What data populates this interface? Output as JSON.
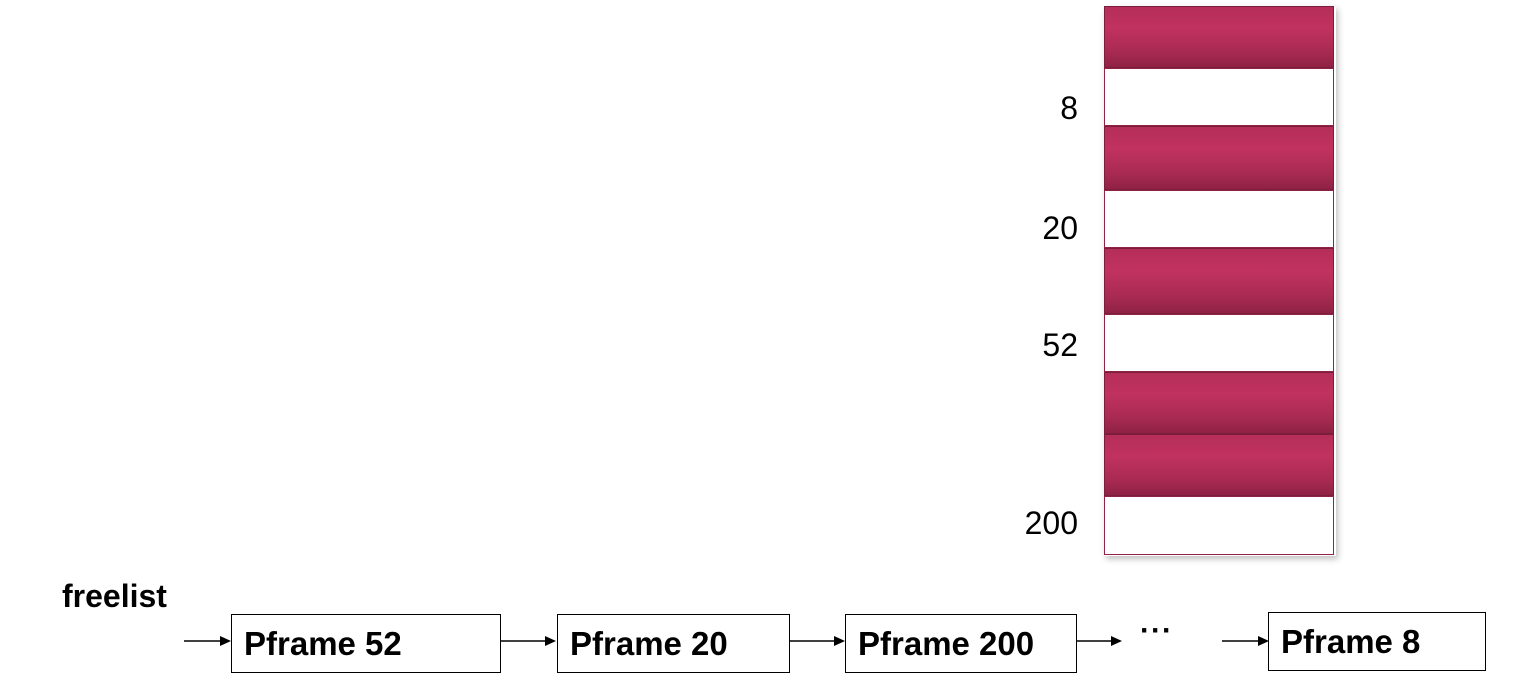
{
  "memory": {
    "blocks": [
      {
        "state": "used"
      },
      {
        "state": "free",
        "label": "8"
      },
      {
        "state": "used"
      },
      {
        "state": "free",
        "label": "20"
      },
      {
        "state": "used"
      },
      {
        "state": "free",
        "label": "52"
      },
      {
        "state": "used"
      },
      {
        "state": "used"
      },
      {
        "state": "free",
        "label": "200"
      }
    ],
    "used_color": "#b52e59",
    "free_color": "#ffffff"
  },
  "freelist": {
    "label": "freelist",
    "nodes": [
      "Pframe 52",
      "Pframe 20",
      "Pframe 200",
      "Pframe 8"
    ],
    "ellipsis": "···"
  }
}
